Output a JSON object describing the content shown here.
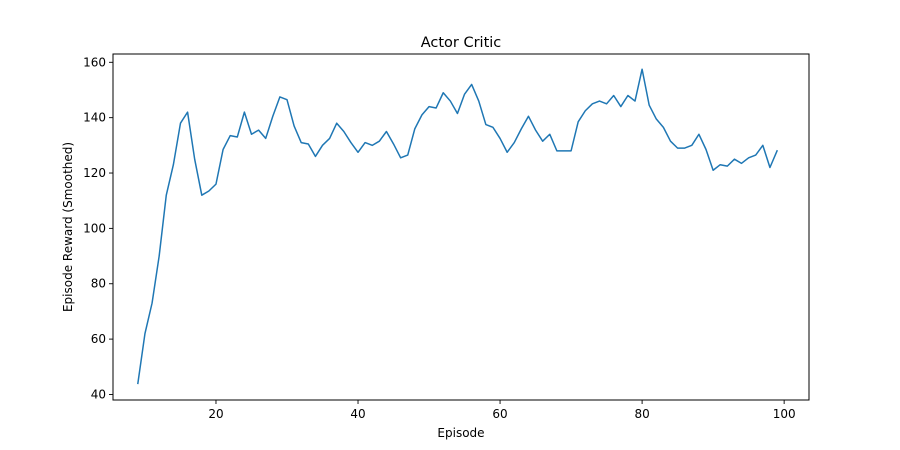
{
  "chart_data": {
    "type": "line",
    "title": "Actor Critic",
    "xlabel": "Episode",
    "ylabel": "Episode Reward (Smoothed)",
    "xlim": [
      5.5,
      103.5
    ],
    "ylim": [
      38,
      163
    ],
    "xticks": [
      20,
      40,
      60,
      80,
      100
    ],
    "yticks": [
      40,
      60,
      80,
      100,
      120,
      140,
      160
    ],
    "grid": false,
    "line_color": "#1f77b4",
    "series": [
      {
        "x": [
          9,
          10,
          11,
          12,
          13,
          14,
          15,
          16,
          17,
          18,
          19,
          20,
          21,
          22,
          23,
          24,
          25,
          26,
          27,
          28,
          29,
          30,
          31,
          32,
          33,
          34,
          35,
          36,
          37,
          38,
          39,
          40,
          41,
          42,
          43,
          44,
          45,
          46,
          47,
          48,
          49,
          50,
          51,
          52,
          53,
          54,
          55,
          56,
          57,
          58,
          59,
          60,
          61,
          62,
          63,
          64,
          65,
          66,
          67,
          68,
          69,
          70,
          71,
          72,
          73,
          74,
          75,
          76,
          77,
          78,
          79,
          80,
          81,
          82,
          83,
          84,
          85,
          86,
          87,
          88,
          89,
          90,
          91,
          92,
          93,
          94,
          95,
          96,
          97,
          98,
          99
        ],
        "values": [
          44,
          62,
          73,
          90,
          112,
          123,
          138,
          142,
          125,
          112,
          113.5,
          116,
          128.5,
          133.5,
          133,
          142,
          134,
          135.5,
          132.5,
          140.5,
          147.5,
          146.5,
          137,
          131,
          130.5,
          126,
          130,
          132.5,
          138,
          135,
          131,
          127.5,
          131,
          130,
          131.5,
          135,
          130.5,
          125.5,
          126.5,
          136,
          141,
          144,
          143.5,
          149,
          146,
          141.5,
          148.5,
          152,
          146,
          137.5,
          136.5,
          132.5,
          127.5,
          131,
          136,
          140.5,
          135.5,
          131.5,
          134,
          128,
          128,
          128,
          138.5,
          142.5,
          145,
          146,
          145,
          148,
          144,
          148,
          146,
          157.5,
          144.5,
          139.5,
          136.5,
          131.5,
          129,
          129,
          130,
          134,
          128.5,
          121,
          123,
          122.5,
          125,
          123.5,
          125.5,
          126.5,
          130,
          122,
          128
        ]
      }
    ]
  }
}
